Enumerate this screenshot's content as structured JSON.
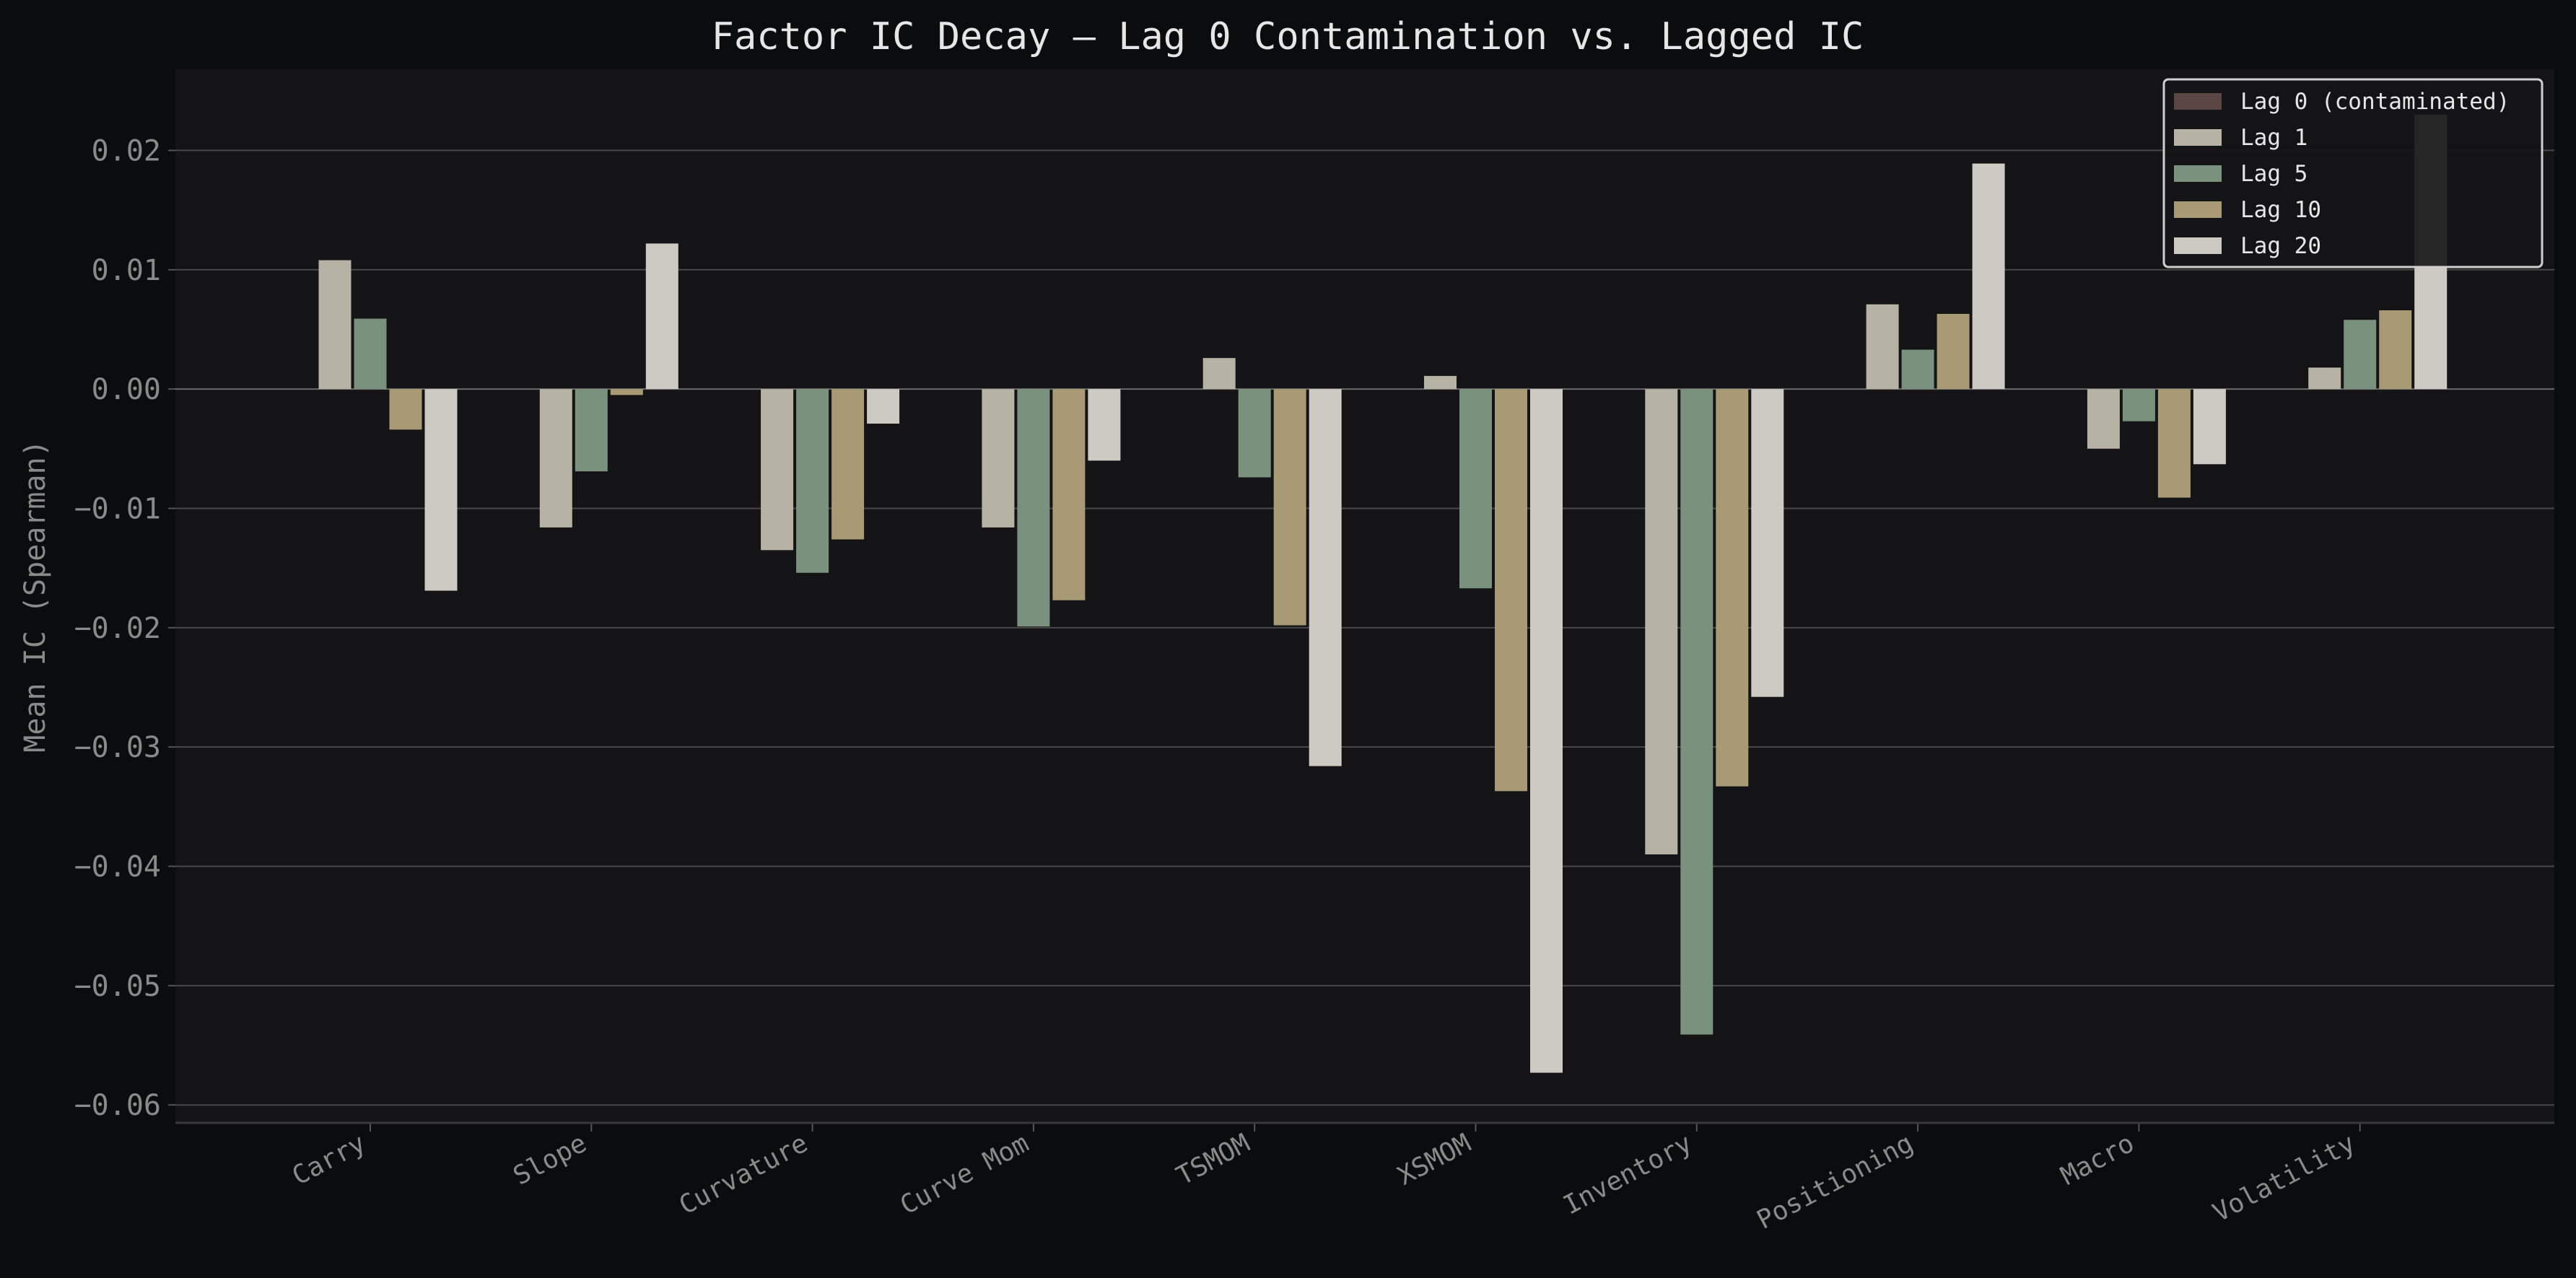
{
  "chart_data": {
    "type": "bar",
    "title": "Factor IC Decay — Lag 0 Contamination vs. Lagged IC",
    "xlabel": "",
    "ylabel": "Mean IC (Spearman)",
    "ylim": [
      -0.0615,
      0.0268
    ],
    "yticks": [
      "0.02",
      "0.01",
      "0.00",
      "−0.01",
      "−0.02",
      "−0.03",
      "−0.04",
      "−0.05",
      "−0.06"
    ],
    "ytick_values": [
      0.02,
      0.01,
      0.0,
      -0.01,
      -0.02,
      -0.03,
      -0.04,
      -0.05,
      -0.06
    ],
    "grid": true,
    "legend_position": "top-right",
    "categories": [
      "Carry",
      "Slope",
      "Curvature",
      "Curve Mom",
      "TSMOM",
      "XSMOM",
      "Inventory",
      "Positioning",
      "Macro",
      "Volatility"
    ],
    "series": [
      {
        "name": "Lag 0 (contaminated)",
        "color": "#5a4642",
        "values": [
          null,
          null,
          null,
          null,
          null,
          null,
          null,
          null,
          null,
          0.023
        ]
      },
      {
        "name": "Lag 1",
        "color": "#b6b2a4",
        "values": [
          0.0108,
          -0.0116,
          -0.0135,
          -0.0116,
          0.0026,
          0.0011,
          -0.039,
          0.0071,
          -0.005,
          0.0018
        ]
      },
      {
        "name": "Lag 5",
        "color": "#7a927d",
        "values": [
          0.0059,
          -0.0069,
          -0.0154,
          -0.0199,
          -0.0074,
          -0.0167,
          -0.0541,
          0.0033,
          -0.0027,
          0.0058
        ]
      },
      {
        "name": "Lag 10",
        "color": "#a89a74",
        "values": [
          -0.0034,
          -0.0005,
          -0.0126,
          -0.0177,
          -0.0198,
          -0.0337,
          -0.0333,
          0.0063,
          -0.0091,
          0.0066
        ]
      },
      {
        "name": "Lag 20",
        "color": "#cdcac4",
        "values": [
          -0.0169,
          0.0122,
          -0.0029,
          -0.006,
          -0.0316,
          -0.0573,
          -0.0258,
          0.0189,
          -0.0063,
          0.023
        ]
      }
    ]
  }
}
